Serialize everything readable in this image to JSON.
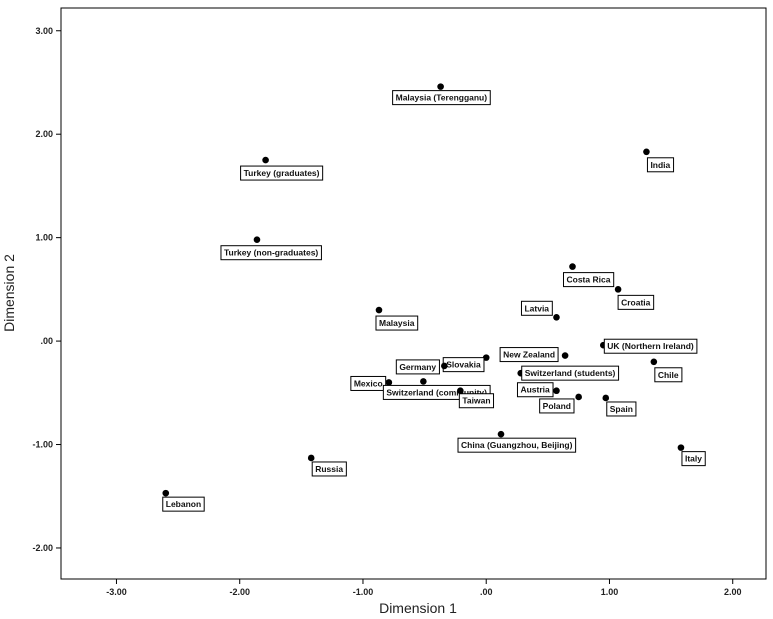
{
  "chart_data": {
    "type": "scatter",
    "title": "",
    "xlabel": "Dimension 1",
    "ylabel": "Dimension 2",
    "xlim": [
      -3.45,
      2.27
    ],
    "ylim": [
      -2.3,
      3.22
    ],
    "x_ticks": [
      -3.0,
      -2.0,
      -1.0,
      0.0,
      1.0,
      2.0
    ],
    "y_ticks": [
      -2.0,
      -1.0,
      0.0,
      1.0,
      2.0,
      3.0
    ],
    "x_tick_labels": [
      "-3.00",
      "-2.00",
      "-1.00",
      ".00",
      "1.00",
      "2.00"
    ],
    "y_tick_labels": [
      "-2.00",
      "-1.00",
      ".00",
      "1.00",
      "2.00",
      "3.00"
    ],
    "grid": false,
    "marker_color": "#000000",
    "points": [
      {
        "label": "Malaysia (Terengganu)",
        "x": -0.37,
        "y": 2.46
      },
      {
        "label": "India",
        "x": 1.3,
        "y": 1.83
      },
      {
        "label": "Turkey (graduates)",
        "x": -1.79,
        "y": 1.75
      },
      {
        "label": "Turkey (non-graduates)",
        "x": -1.86,
        "y": 0.98
      },
      {
        "label": "Costa Rica",
        "x": 0.7,
        "y": 0.72
      },
      {
        "label": "Croatia",
        "x": 1.07,
        "y": 0.5
      },
      {
        "label": "Malaysia",
        "x": -0.87,
        "y": 0.3
      },
      {
        "label": "Latvia",
        "x": 0.57,
        "y": 0.23
      },
      {
        "label": "UK (Northern Ireland)",
        "x": 0.95,
        "y": -0.04
      },
      {
        "label": "New Zealand",
        "x": 0.64,
        "y": -0.14
      },
      {
        "label": "Slovakia",
        "x": 0.0,
        "y": -0.16
      },
      {
        "label": "Chile",
        "x": 1.36,
        "y": -0.2
      },
      {
        "label": "Germany",
        "x": -0.34,
        "y": -0.24
      },
      {
        "label": "Switzerland (students)",
        "x": 0.28,
        "y": -0.31
      },
      {
        "label": "Mexico",
        "x": -0.39,
        "y": -0.27
      },
      {
        "label": "Switzerland (community)",
        "x": -0.51,
        "y": -0.39
      },
      {
        "label": "Taiwan",
        "x": -0.79,
        "y": -0.4
      },
      {
        "label": "Austria",
        "x": -0.21,
        "y": -0.48
      },
      {
        "label": "Poland",
        "x": 0.57,
        "y": -0.48
      },
      {
        "label": "Spain",
        "x": 0.75,
        "y": -0.54
      },
      {
        "label": "Russia",
        "x": 0.97,
        "y": -0.55
      },
      {
        "label": "China (Guangzhou, Beijing)",
        "x": 0.12,
        "y": -0.9
      },
      {
        "label": "Italy",
        "x": 1.58,
        "y": -1.03
      },
      {
        "label": "Lebanon",
        "x": -1.42,
        "y": -1.13
      },
      {
        "label": "Lebanon2",
        "x": -2.6,
        "y": -1.47
      }
    ]
  }
}
